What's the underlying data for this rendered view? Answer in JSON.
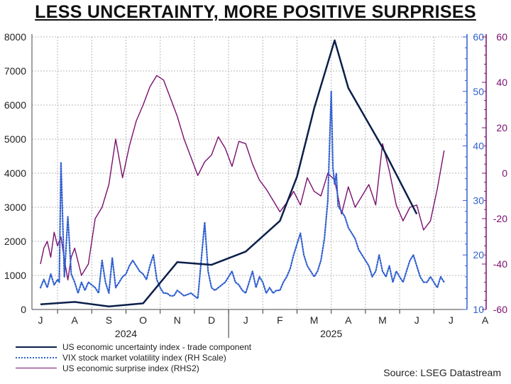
{
  "chart_data": {
    "type": "line",
    "title": "LESS UNCERTAINTY, MORE POSITIVE SURPRISES",
    "source": "Source: LSEG Datastream",
    "x_axis": {
      "month_labels": [
        "J",
        "A",
        "S",
        "O",
        "N",
        "D",
        "J",
        "F",
        "M",
        "A",
        "M",
        "J",
        "J",
        "A"
      ],
      "year_labels": [
        "2024",
        "2025"
      ]
    },
    "y_left": {
      "ticks": [
        "0",
        "1000",
        "2000",
        "3000",
        "4000",
        "5000",
        "6000",
        "7000",
        "8000"
      ],
      "ylim": [
        0,
        8000
      ]
    },
    "y_right1": {
      "ticks": [
        "10",
        "20",
        "30",
        "40",
        "50",
        "60"
      ],
      "ylim": [
        10,
        60
      ],
      "color": "#2f5fd0"
    },
    "y_right2": {
      "ticks": [
        "-60",
        "-40",
        "-20",
        "0",
        "20",
        "40",
        "60"
      ],
      "ylim": [
        -60,
        60
      ],
      "color": "#7a0f6e"
    },
    "series": [
      {
        "name": "US economic uncertainty index - trade component",
        "axis": "left",
        "color": "#0b1f4a",
        "style": "solid",
        "x": [
          0.0,
          1.0,
          2.0,
          3.0,
          4.0,
          5.0,
          6.0,
          7.0,
          7.5,
          8.0,
          8.6,
          9.0,
          10.0,
          11.0
        ],
        "values": [
          150,
          220,
          90,
          180,
          1390,
          1310,
          1700,
          2600,
          3900,
          5900,
          7900,
          6500,
          4750,
          2800
        ]
      },
      {
        "name": "VIX stock market volatility index (RH Scale)",
        "axis": "right1",
        "color": "#2f5fd0",
        "style": "dotted",
        "x": [
          0.0,
          0.1,
          0.2,
          0.3,
          0.4,
          0.5,
          0.55,
          0.6,
          0.7,
          0.8,
          0.9,
          1.0,
          1.1,
          1.2,
          1.3,
          1.4,
          1.5,
          1.6,
          1.7,
          1.8,
          1.9,
          2.0,
          2.1,
          2.2,
          2.3,
          2.4,
          2.5,
          2.6,
          2.7,
          2.8,
          2.9,
          3.0,
          3.1,
          3.2,
          3.3,
          3.4,
          3.5,
          3.6,
          3.7,
          3.8,
          3.9,
          4.0,
          4.2,
          4.4,
          4.6,
          4.8,
          4.9,
          5.0,
          5.1,
          5.2,
          5.3,
          5.4,
          5.5,
          5.6,
          5.7,
          5.8,
          5.9,
          6.0,
          6.1,
          6.2,
          6.3,
          6.4,
          6.5,
          6.6,
          6.7,
          6.8,
          6.9,
          7.0,
          7.1,
          7.2,
          7.3,
          7.4,
          7.5,
          7.6,
          7.7,
          7.8,
          7.9,
          8.0,
          8.1,
          8.2,
          8.3,
          8.4,
          8.5,
          8.55,
          8.6,
          8.65,
          8.7,
          8.8,
          8.9,
          9.0,
          9.1,
          9.2,
          9.3,
          9.4,
          9.5,
          9.6,
          9.7,
          9.8,
          9.9,
          10.0,
          10.1,
          10.2,
          10.3,
          10.4,
          10.5,
          10.6,
          10.7,
          10.8,
          10.9,
          11.0,
          11.1,
          11.2,
          11.3,
          11.4,
          11.5,
          11.6,
          11.7,
          11.8
        ],
        "values": [
          14,
          15.5,
          14,
          16.5,
          14.5,
          15.5,
          15,
          37,
          16,
          27,
          16.5,
          15,
          13,
          15,
          13.5,
          15,
          14.5,
          14,
          13,
          19,
          15,
          13,
          19.5,
          14,
          15,
          16,
          16.5,
          18,
          19,
          18,
          17,
          16.5,
          15.5,
          18,
          20,
          15.5,
          14,
          13,
          13,
          12.5,
          12.5,
          13.5,
          12.5,
          13,
          12,
          26,
          17,
          14,
          13.5,
          14,
          14.5,
          15,
          16,
          17,
          15,
          14.5,
          13.5,
          13,
          15,
          17,
          14,
          16,
          15,
          13,
          14,
          13,
          13.5,
          13.5,
          15,
          16,
          17.5,
          20,
          22,
          24,
          20,
          18,
          17,
          16,
          17,
          19,
          23,
          30,
          50,
          36,
          33,
          35,
          29,
          28,
          27,
          25,
          24,
          23,
          21,
          20,
          19,
          18,
          16,
          17,
          20,
          17,
          16,
          18,
          15,
          17,
          16,
          15,
          17,
          19,
          20,
          18,
          16,
          15,
          15,
          16,
          15,
          14,
          16,
          15
        ],
        "peak_annotations": []
      },
      {
        "name": "US economic surprise index (RHS2)",
        "axis": "right2",
        "color": "#7a0f6e",
        "style": "solid",
        "x": [
          0.0,
          0.1,
          0.2,
          0.3,
          0.4,
          0.5,
          0.6,
          0.7,
          0.8,
          0.9,
          1.0,
          1.2,
          1.4,
          1.6,
          1.8,
          2.0,
          2.2,
          2.4,
          2.6,
          2.8,
          3.0,
          3.2,
          3.4,
          3.6,
          3.8,
          4.0,
          4.2,
          4.4,
          4.6,
          4.8,
          5.0,
          5.2,
          5.4,
          5.6,
          5.8,
          6.0,
          6.2,
          6.4,
          6.6,
          6.8,
          7.0,
          7.2,
          7.4,
          7.6,
          7.8,
          8.0,
          8.2,
          8.4,
          8.6,
          8.8,
          9.0,
          9.2,
          9.4,
          9.6,
          9.8,
          10.0,
          10.2,
          10.4,
          10.6,
          10.8,
          11.0,
          11.2,
          11.4,
          11.6,
          11.8
        ],
        "values": [
          -40,
          -33,
          -30,
          -37,
          -26,
          -32,
          -28,
          -38,
          -47,
          -37,
          -33,
          -45,
          -40,
          -20,
          -15,
          -5,
          15,
          -2,
          12,
          23,
          30,
          38,
          43,
          41,
          33,
          25,
          15,
          7,
          -1,
          5,
          8,
          16,
          11,
          3,
          14,
          13,
          4,
          -3,
          -7,
          -12,
          -17,
          -13,
          -8,
          -14,
          -2,
          -8,
          -10,
          0,
          -3,
          -18,
          -6,
          -15,
          -10,
          -5,
          -14,
          13,
          1,
          -14,
          -21,
          -15,
          -14,
          -25,
          -21,
          -7,
          10
        ]
      }
    ],
    "legend": [
      {
        "label": "US economic uncertainty index - trade component"
      },
      {
        "label": "VIX stock market volatility index (RH Scale)"
      },
      {
        "label": "US economic surprise index (RHS2)"
      }
    ]
  }
}
